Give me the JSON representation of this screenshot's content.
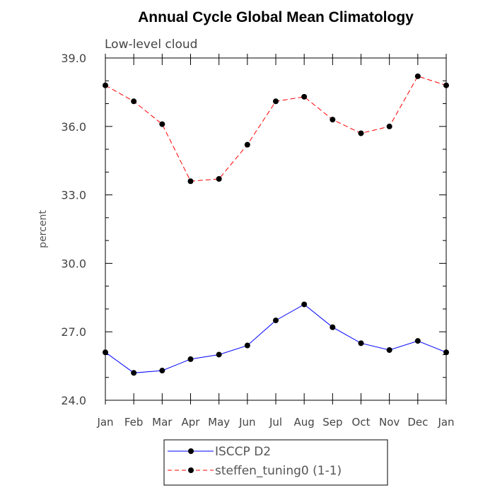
{
  "chart_data": {
    "type": "line",
    "title": "Annual Cycle Global Mean Climatology",
    "subtitle": "Low-level cloud",
    "xlabel": "",
    "ylabel": "percent",
    "categories": [
      "Jan",
      "Feb",
      "Mar",
      "Apr",
      "May",
      "Jun",
      "Jul",
      "Aug",
      "Sep",
      "Oct",
      "Nov",
      "Dec",
      "Jan"
    ],
    "ylim": [
      24.0,
      39.0
    ],
    "yticks": [
      "24.0",
      "27.0",
      "30.0",
      "33.0",
      "36.0",
      "39.0"
    ],
    "grid": false,
    "legend_position": "bottom",
    "series": [
      {
        "name": "ISCCP D2",
        "color": "#0000ff",
        "line_style": "solid",
        "marker": "filled-circle",
        "values": [
          26.1,
          25.2,
          25.3,
          25.8,
          26.0,
          26.4,
          27.5,
          28.2,
          27.2,
          26.5,
          26.2,
          26.6,
          26.1
        ]
      },
      {
        "name": "steffen_tuning0 (1-1)",
        "color": "#ff0000",
        "line_style": "dashed",
        "marker": "filled-circle",
        "values": [
          37.8,
          37.1,
          36.1,
          33.6,
          33.7,
          35.2,
          37.1,
          37.3,
          36.3,
          35.7,
          36.0,
          38.2,
          37.8
        ]
      }
    ]
  }
}
